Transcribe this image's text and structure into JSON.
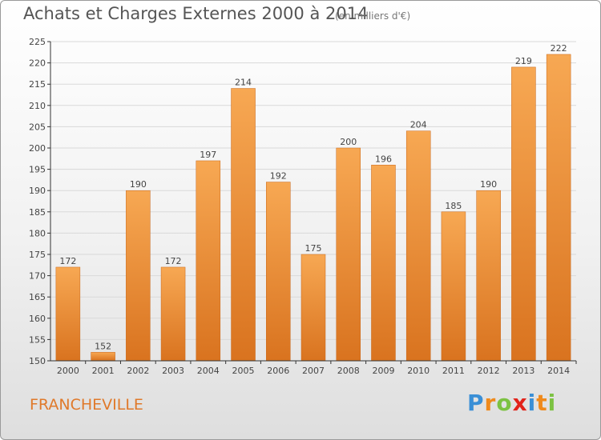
{
  "header": {
    "title": "Achats et Charges Externes 2000 à 2014",
    "subtitle": "(en milliers d'€)"
  },
  "footer": {
    "commune": "FRANCHEVILLE",
    "logo": {
      "text": "Proxiti",
      "letter_colors": [
        "#3a8fd6",
        "#ef8a1c",
        "#7cc242",
        "#e2231a",
        "#3a8fd6",
        "#ef8a1c",
        "#7cc242"
      ]
    }
  },
  "colors": {
    "bar_light": "#f7a853",
    "bar_dark": "#d9731f",
    "grid": "#d9d9d9",
    "axis": "#333333",
    "text": "#444444"
  },
  "chart_data": {
    "type": "bar",
    "title": "Achats et Charges Externes 2000 à 2014",
    "subtitle": "(en milliers d'€)",
    "xlabel": "",
    "ylabel": "",
    "categories": [
      "2000",
      "2001",
      "2002",
      "2003",
      "2004",
      "2005",
      "2006",
      "2007",
      "2008",
      "2009",
      "2010",
      "2011",
      "2012",
      "2013",
      "2014"
    ],
    "values": [
      172,
      152,
      190,
      172,
      197,
      214,
      192,
      175,
      200,
      196,
      204,
      185,
      190,
      219,
      222
    ],
    "ylim": [
      150,
      225
    ],
    "yticks": [
      150,
      155,
      160,
      165,
      170,
      175,
      180,
      185,
      190,
      195,
      200,
      205,
      210,
      215,
      220,
      225
    ],
    "grid": true,
    "data_labels": true
  }
}
